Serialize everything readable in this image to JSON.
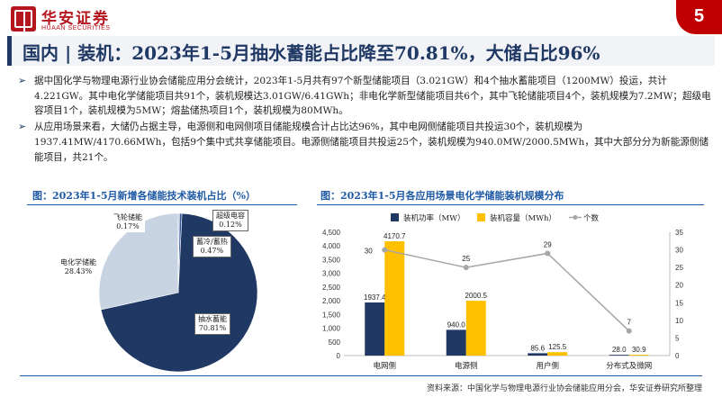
{
  "header": {
    "brand_cn": "华安证券",
    "brand_en": "HUAAN SECURITIES",
    "page_number": "5",
    "accent_color": "#b5161e",
    "navy_color": "#1f3864"
  },
  "title": "国内 | 装机：2023年1-5月抽水蓄能占比降至70.81%，大储占比96%",
  "bullets": [
    "据中国化学与物理电源行业协会储能应用分会统计，2023年1-5月共有97个新型储能项目（3.021GW）和4个抽水蓄能项目（1200MW）投运，共计4.221GW。其中电化学储能项目共91个，装机规模达3.01GW/6.41GWh；非电化学新型储能项目共6个，其中飞轮储能项目4个，装机规模为7.2MW；超级电容项目1个，装机规模为5MW；熔盐储热项目1个，装机规模为80MWh。",
    "从应用场景来看，大储仍占据主导，电源侧和电网侧项目储能规模合计占比达96%，其中电网侧储能项目共投运30个，装机规模为1937.41MW/4170.66MWh，包括9个集中式共享储能项目。电源侧储能项目共投运25个，装机规模为940.0MW/2000.5MWh，其中大部分分为新能源侧储能项目，共21个。"
  ],
  "fig1": {
    "title": "图：2023年1-5月新增各储能技术装机占比（%）"
  },
  "fig2": {
    "title": "图：2023年1-5月各应用场景电化学储能装机规模分布"
  },
  "chart_data": [
    {
      "type": "pie",
      "title": "图：2023年1-5月新增各储能技术装机占比（%）",
      "slices": [
        {
          "label": "抽水蓄能",
          "value": 70.81,
          "display": "70.81%",
          "color": "#1f3864"
        },
        {
          "label": "电化学储能",
          "value": 28.43,
          "display": "28.43%",
          "color": "#c9d4e3"
        },
        {
          "label": "飞轮储能",
          "value": 0.17,
          "display": "0.17%",
          "color": "#6e8fbf"
        },
        {
          "label": "超级电容",
          "value": 0.12,
          "display": "0.12%",
          "color": "#e8a33d"
        },
        {
          "label": "蓄冷/蓄热",
          "value": 0.47,
          "display": "0.47%",
          "color": "#2f5597"
        }
      ]
    },
    {
      "type": "bar",
      "title": "图：2023年1-5月各应用场景电化学储能装机规模分布",
      "categories": [
        "电网侧",
        "电源侧",
        "用户侧",
        "分布式及微网"
      ],
      "series": [
        {
          "name": "装机功率（MW）",
          "type": "bar",
          "axis": "left",
          "color": "#1f3864",
          "values": [
            1937.4,
            940.0,
            85.6,
            28.0
          ],
          "labels": [
            "1937.4",
            "940.0",
            "85.6",
            "28.0"
          ]
        },
        {
          "name": "装机容量（MWh）",
          "type": "bar",
          "axis": "left",
          "color": "#ffc000",
          "values": [
            4170.7,
            2000.5,
            125.5,
            30.9
          ],
          "labels": [
            "4170.7",
            "2000.5",
            "125.5",
            "30.9"
          ]
        },
        {
          "name": "个数",
          "type": "line",
          "axis": "right",
          "color": "#a6a6a6",
          "values": [
            30,
            25,
            29,
            7
          ],
          "labels": [
            "30",
            "25",
            "29",
            "7"
          ]
        }
      ],
      "ylim_left": [
        0,
        4500
      ],
      "yticks_left": [
        "0",
        "500",
        "1,000",
        "1,500",
        "2,000",
        "2,500",
        "3,000",
        "3,500",
        "4,000",
        "4,500"
      ],
      "ylim_right": [
        0,
        35
      ],
      "yticks_right": [
        "0",
        "5",
        "10",
        "15",
        "20",
        "25",
        "30",
        "35"
      ],
      "legend_position": "top"
    }
  ],
  "source": "资料来源：中国化学与物理电源行业协会储能应用分会，华安证券研究所整理"
}
